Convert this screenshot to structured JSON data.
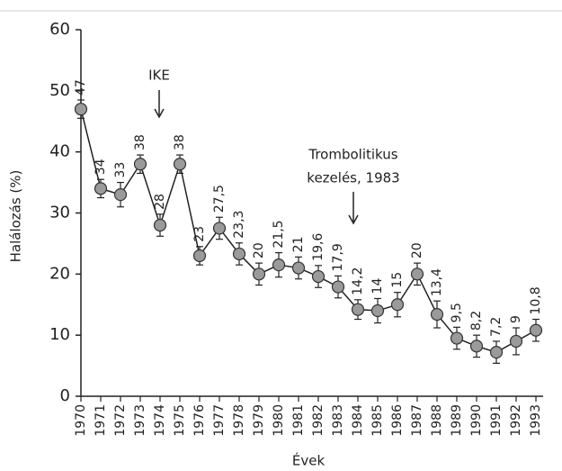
{
  "chart_data": {
    "type": "line",
    "y_label": "Halálozás (%)",
    "x_label": "Évek",
    "categories": [
      "1970",
      "1971",
      "1972",
      "1973",
      "1974",
      "1975",
      "1976",
      "1977",
      "1978",
      "1979",
      "1980",
      "1981",
      "1982",
      "1983",
      "1984",
      "1985",
      "1986",
      "1987",
      "1988",
      "1989",
      "1990",
      "1991",
      "1992",
      "1993"
    ],
    "values": [
      47,
      34,
      33,
      38,
      28,
      38,
      23,
      27.5,
      23.3,
      20,
      21.5,
      21,
      19.6,
      17.9,
      14.2,
      14,
      15,
      20,
      13.4,
      9.5,
      8.2,
      7.2,
      9,
      10.8
    ],
    "value_labels": [
      "47",
      "34",
      "33",
      "38",
      "28",
      "38",
      "23",
      "27,5",
      "23,3",
      "20",
      "21,5",
      "21",
      "19,6",
      "17,9",
      "14,2",
      "14",
      "15",
      "20",
      "13,4",
      "9,5",
      "8,2",
      "7,2",
      "9",
      "10,8"
    ],
    "errors": [
      1.5,
      1.5,
      2,
      1.5,
      1.8,
      1.5,
      1.5,
      1.8,
      1.8,
      1.8,
      2,
      1.8,
      1.8,
      1.8,
      1.6,
      2,
      2,
      1.8,
      2.2,
      1.8,
      1.8,
      1.8,
      2.2,
      1.8
    ],
    "color": "#9a9a9a",
    "line_color": "#222222",
    "ylim": [
      0,
      60
    ],
    "yticks": [
      0,
      10,
      20,
      30,
      40,
      50,
      60
    ],
    "annotations": [
      [
        "IKE"
      ],
      [
        "Trombolitikus",
        "kezelés, 1983"
      ]
    ]
  }
}
